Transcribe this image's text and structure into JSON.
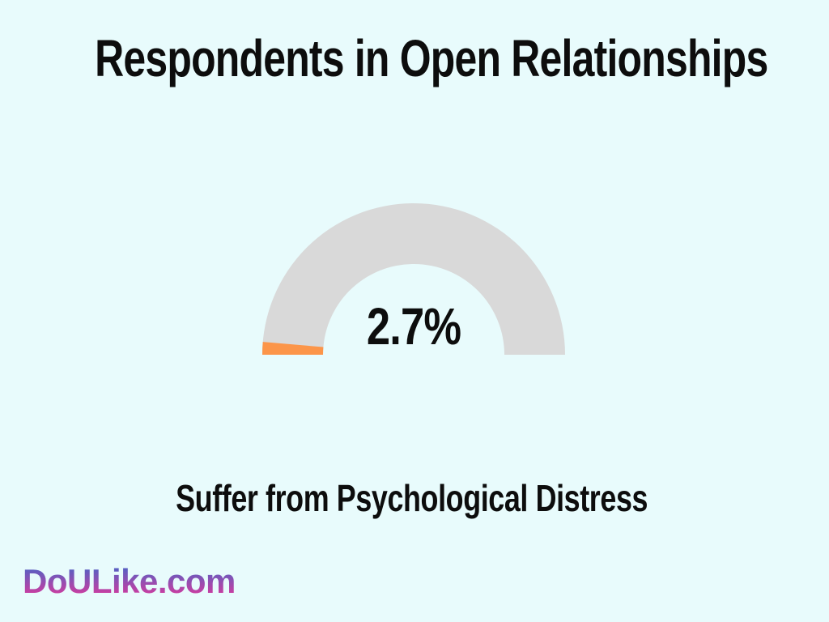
{
  "page": {
    "background_color": "#E8FBFC"
  },
  "header": {
    "title": "Respondents in Open Relationships"
  },
  "chart_data": {
    "type": "pie",
    "variant": "half-donut-gauge",
    "title": "Respondents in Open Relationships",
    "caption": "Suffer from Psychological Distress",
    "value": 2.7,
    "max": 100,
    "unit": "%",
    "center_label": "2.7%",
    "start_angle_deg": 180,
    "end_angle_deg": 0,
    "slices": [
      {
        "label": "2.7%",
        "value": 2.7,
        "color": "#FC9549"
      },
      {
        "label": "",
        "value": 97.3,
        "color": "#D9D9D9"
      }
    ],
    "legend": "none",
    "axes": "none",
    "geometry": {
      "outer_radius": 187,
      "inner_radius": 112
    }
  },
  "caption": {
    "text": "Suffer from Psychological Distress"
  },
  "branding": {
    "site": "DoULike.com",
    "gradient_top_color": "#4565C8",
    "gradient_bottom_color": "#D83A9D"
  }
}
